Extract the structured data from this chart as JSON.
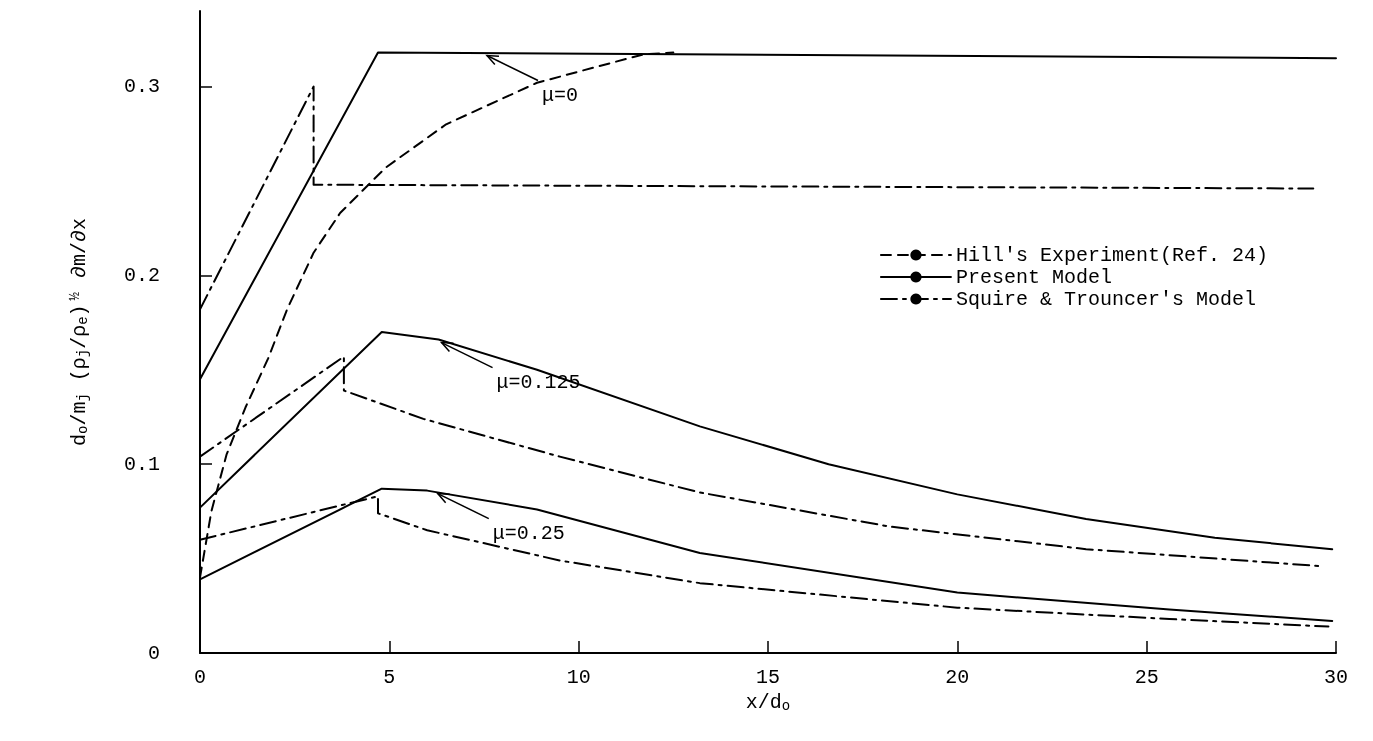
{
  "chart_data": {
    "type": "line",
    "xlabel": "x/d$_{o}$",
    "ylabel": "d$_{o}$/m$_{j}$ (ρ$_{j}$/ρ$_{e}$)$^{½}$ ∂m/∂x",
    "xlim": [
      0,
      30
    ],
    "xticks": [
      0,
      5,
      10,
      15,
      20,
      25,
      30
    ],
    "ylim": [
      0,
      0.34
    ],
    "yticks": [
      0,
      0.1,
      0.2,
      0.3
    ],
    "grid": false,
    "legend": "right",
    "marker": "none",
    "series": [
      {
        "name": "Hill's Experiment(Ref. 24)",
        "color": "#000000",
        "line_style": "dashed",
        "x": [
          0,
          0.3,
          0.7,
          1.2,
          1.8,
          2.3,
          3.0,
          3.7,
          4.9,
          6.5,
          8.9,
          11.7,
          12.5
        ],
        "values": [
          0.04,
          0.075,
          0.105,
          0.13,
          0.156,
          0.182,
          0.212,
          0.233,
          0.257,
          0.28,
          0.302,
          0.317,
          0.318
        ]
      },
      {
        "name": "Present Model",
        "color": "#000000",
        "line_style": "solid",
        "x": [
          0,
          4.7,
          30
        ],
        "values": [
          0.145,
          0.318,
          0.315
        ]
      },
      {
        "name": "Squire & Trouncer's Model",
        "color": "#000000",
        "line_style": "dashdot",
        "x": [
          0,
          3.0,
          3.0,
          29.4
        ],
        "values": [
          0.182,
          0.3,
          0.248,
          0.246
        ]
      },
      {
        "color": "#000000",
        "line_style": "solid",
        "x": [
          0,
          4.8,
          6.3,
          8.9,
          13.2,
          16.6,
          20,
          23.4,
          26.8,
          29.9
        ],
        "values": [
          0.077,
          0.17,
          0.166,
          0.15,
          0.12,
          0.1,
          0.084,
          0.071,
          0.061,
          0.055
        ]
      },
      {
        "color": "#000000",
        "line_style": "dashdot",
        "x": [
          0,
          3.8,
          3.8,
          5.9,
          9.5,
          13.2,
          18.2,
          23.4,
          29.6
        ],
        "values": [
          0.104,
          0.157,
          0.139,
          0.124,
          0.104,
          0.085,
          0.067,
          0.055,
          0.046
        ]
      },
      {
        "color": "#000000",
        "line_style": "solid",
        "x": [
          0,
          3.9,
          4.8,
          6.0,
          8.9,
          13.2,
          20,
          25.6,
          29.9
        ],
        "values": [
          0.039,
          0.078,
          0.087,
          0.086,
          0.076,
          0.053,
          0.032,
          0.023,
          0.017
        ]
      },
      {
        "color": "#000000",
        "line_style": "dashdot",
        "x": [
          0,
          4.7,
          4.7,
          6.0,
          9.5,
          13.2,
          20,
          25.6,
          29.8
        ],
        "values": [
          0.06,
          0.083,
          0.074,
          0.065,
          0.049,
          0.037,
          0.024,
          0.018,
          0.014
        ]
      }
    ],
    "annotations": [
      {
        "text": "μ=0",
        "x": 7.5,
        "y": 0.318
      },
      {
        "text": "μ=0.125",
        "x": 6.3,
        "y": 0.166
      },
      {
        "text": "μ=0.25",
        "x": 6.2,
        "y": 0.086
      }
    ]
  }
}
